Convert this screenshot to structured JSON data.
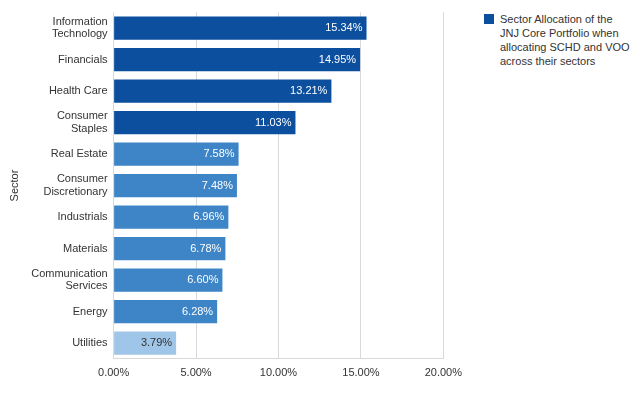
{
  "chart_data": {
    "type": "bar",
    "orientation": "horizontal",
    "y_label": "Sector",
    "categories": [
      "Information Technology",
      "Financials",
      "Health Care",
      "Consumer Staples",
      "Real Estate",
      "Consumer Discretionary",
      "Industrials",
      "Materials",
      "Communication Services",
      "Energy",
      "Utilities"
    ],
    "series": [
      {
        "name": "Sector Allocation of the JNJ Core Portfolio when allocating SCHD and VOO across their sectors",
        "color": "#0b4f9e",
        "colors": [
          "#0b4f9e",
          "#0b4f9e",
          "#0b4f9e",
          "#0b4f9e",
          "#3d85c6",
          "#3d85c6",
          "#3d85c6",
          "#3d85c6",
          "#3d85c6",
          "#3d85c6",
          "#9fc5e8"
        ],
        "values": [
          15.34,
          14.95,
          13.21,
          11.03,
          7.58,
          7.48,
          6.96,
          6.78,
          6.6,
          6.28,
          3.79
        ],
        "value_labels": [
          "15.34%",
          "14.95%",
          "13.21%",
          "11.03%",
          "7.58%",
          "7.48%",
          "6.96%",
          "6.78%",
          "6.60%",
          "6.28%",
          "3.79%"
        ]
      }
    ],
    "xlim": [
      0,
      20
    ],
    "xticks": [
      {
        "value": 0,
        "label": "0.00%"
      },
      {
        "value": 5,
        "label": "5.00%"
      },
      {
        "value": 10,
        "label": "10.00%"
      },
      {
        "value": 15,
        "label": "15.00%"
      },
      {
        "value": 20,
        "label": "20.00%"
      }
    ],
    "grid": true,
    "legend": "top-right",
    "data_labels": true
  }
}
